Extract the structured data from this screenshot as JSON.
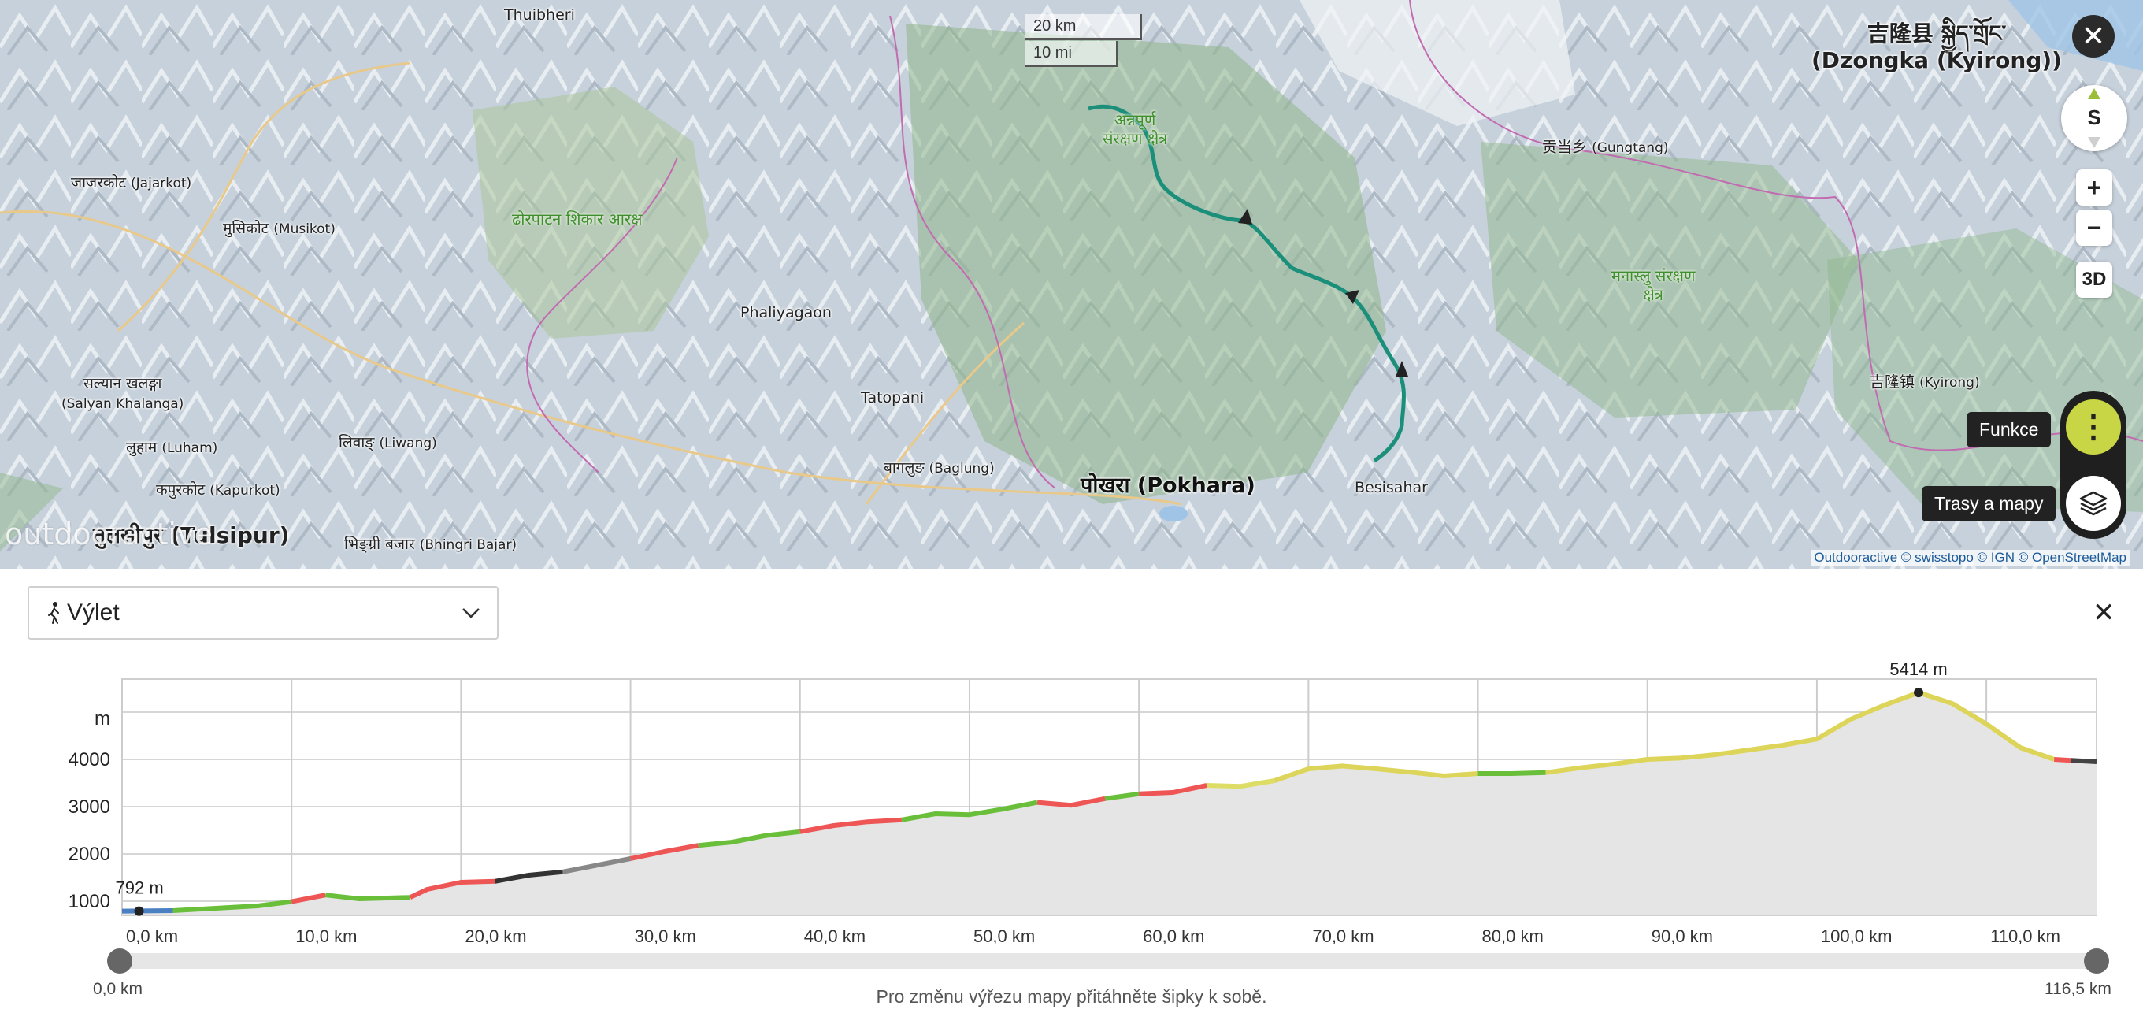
{
  "map": {
    "scale": {
      "km": "20 km",
      "mi": "10 mi"
    },
    "labels": {
      "thuibheri": "Thuibheri",
      "jajarkot": "जाजरकोट",
      "jajarkot_latin": "(Jajarkot)",
      "musikot": "मुसिकोट",
      "musikot_latin": "(Musikot)",
      "salyan": "सल्यान खलङ्गा",
      "salyan_latin": "(Salyan Khalanga)",
      "luham": "लुहाम",
      "luham_latin": "(Luham)",
      "liwang": "लिवाङ्",
      "liwang_latin": "(Liwang)",
      "kapurkot": "कपुरकोट",
      "kapurkot_latin": "(Kapurkot)",
      "tulsipur": "तुलसीपुर",
      "tulsipur_latin": "(Tulsipur)",
      "bhingri": "भिङ्ग्री बजार",
      "bhingri_latin": "(Bhingri Bajar)",
      "dhorpatan": "ढोरपाटन शिकार आरक्ष",
      "phaliyagaon": "Phaliyagaon",
      "tatopani": "Tatopani",
      "baglung": "बागलुङ",
      "baglung_latin": "(Baglung)",
      "pokhara": "पोखरा",
      "pokhara_latin": "(Pokhara)",
      "annapurna1": "अन्नपूर्ण",
      "annapurna2": "संरक्षण क्षेत्र",
      "besisahar": "Besisahar",
      "gungtang": "贡当乡",
      "gungtang_latin": "(Gungtang)",
      "manaslu1": "मनास्लु संरक्षण",
      "manaslu2": "क्षेत्र",
      "kyirong_town": "吉隆镇",
      "kyirong_town_latin": "(Kyirong)",
      "dzongka1": "吉隆县 སྐྱིད་གྲོང་",
      "dzongka2": "(Dzongka (Kyirong))"
    },
    "controls": {
      "compass": "S",
      "zoom_in": "+",
      "zoom_out": "−",
      "three_d": "3D",
      "funkce": "Funkce",
      "trasy": "Trasy a mapy"
    },
    "attribution": "Outdooractive © swisstopo © IGN © OpenStreetMap",
    "logo": "outdooractive"
  },
  "panel": {
    "activity": "Výlet",
    "hint": "Pro změnu výřezu mapy přitáhněte šipky k sobě.",
    "range_start": "0,0 km",
    "range_end": "116,5 km"
  },
  "chart_data": {
    "type": "area",
    "ylabel": "m",
    "yticks": [
      1000,
      2000,
      3000,
      4000
    ],
    "ylim": [
      700,
      5700
    ],
    "xlim": [
      0,
      116.5
    ],
    "xticks": [
      "0,0 km",
      "10,0 km",
      "20,0 km",
      "30,0 km",
      "40,0 km",
      "50,0 km",
      "60,0 km",
      "70,0 km",
      "80,0 km",
      "90,0 km",
      "100,0 km",
      "110,0 km"
    ],
    "x": [
      0,
      3,
      5,
      8,
      10,
      12,
      14,
      17,
      18,
      20,
      22,
      24,
      26,
      28,
      30,
      32,
      34,
      36,
      38,
      40,
      42,
      44,
      46,
      48,
      50,
      52,
      54,
      56,
      58,
      60,
      62,
      64,
      66,
      68,
      70,
      72,
      74,
      76,
      78,
      80,
      82,
      84,
      86,
      88,
      90,
      92,
      94,
      96,
      98,
      100,
      102,
      104,
      106,
      108,
      110,
      112,
      114,
      116.5
    ],
    "y": [
      790,
      800,
      840,
      900,
      990,
      1130,
      1050,
      1080,
      1250,
      1400,
      1420,
      1550,
      1620,
      1760,
      1900,
      2050,
      2180,
      2250,
      2390,
      2470,
      2600,
      2680,
      2720,
      2850,
      2830,
      2950,
      3090,
      3030,
      3170,
      3270,
      3300,
      3450,
      3430,
      3550,
      3800,
      3860,
      3800,
      3730,
      3650,
      3700,
      3700,
      3720,
      3820,
      3900,
      4000,
      4030,
      4100,
      4200,
      4300,
      4430,
      4850,
      5150,
      5414,
      5180,
      4750,
      4250,
      4000,
      3950
    ],
    "segments": [
      {
        "from": 0,
        "to": 3,
        "color": "#4a7fc1"
      },
      {
        "from": 3,
        "to": 10,
        "color": "#6abf3a"
      },
      {
        "from": 10,
        "to": 12,
        "color": "#ee5555"
      },
      {
        "from": 12,
        "to": 17,
        "color": "#6abf3a"
      },
      {
        "from": 17,
        "to": 22,
        "color": "#ee5555"
      },
      {
        "from": 22,
        "to": 26,
        "color": "#333333"
      },
      {
        "from": 26,
        "to": 30,
        "color": "#888888"
      },
      {
        "from": 30,
        "to": 34,
        "color": "#ee5555"
      },
      {
        "from": 34,
        "to": 40,
        "color": "#6abf3a"
      },
      {
        "from": 40,
        "to": 46,
        "color": "#ee5555"
      },
      {
        "from": 46,
        "to": 54,
        "color": "#6abf3a"
      },
      {
        "from": 54,
        "to": 58,
        "color": "#ee5555"
      },
      {
        "from": 58,
        "to": 60,
        "color": "#6abf3a"
      },
      {
        "from": 60,
        "to": 64,
        "color": "#ee5555"
      },
      {
        "from": 64,
        "to": 68,
        "color": "#dddd66"
      },
      {
        "from": 68,
        "to": 80,
        "color": "#dcd55a"
      },
      {
        "from": 80,
        "to": 84,
        "color": "#6abf3a"
      },
      {
        "from": 84,
        "to": 114,
        "color": "#dcd55a"
      },
      {
        "from": 114,
        "to": 115,
        "color": "#ee5555"
      },
      {
        "from": 115,
        "to": 116.5,
        "color": "#444444"
      }
    ],
    "annotations": [
      {
        "x": 1,
        "y": 790,
        "label": "792 m"
      },
      {
        "x": 106,
        "y": 5414,
        "label": "5414 m"
      }
    ]
  }
}
